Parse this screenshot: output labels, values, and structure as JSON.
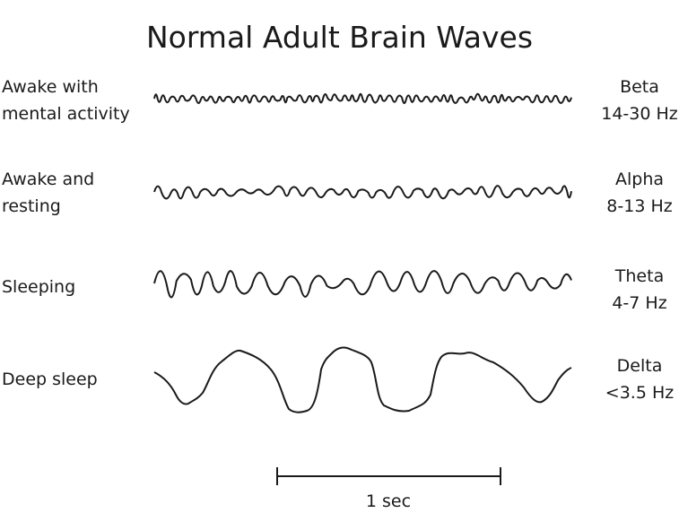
{
  "title": "Normal Adult Brain Waves",
  "rows": [
    {
      "state": [
        "Awake with",
        "mental activity"
      ],
      "wave": "Beta",
      "frequency": "14-30 Hz"
    },
    {
      "state": [
        "Awake and",
        "resting"
      ],
      "wave": "Alpha",
      "frequency": "8-13 Hz"
    },
    {
      "state": [
        "Sleeping"
      ],
      "wave": "Theta",
      "frequency": "4-7 Hz"
    },
    {
      "state": [
        "Deep sleep"
      ],
      "wave": "Delta",
      "frequency": "<3.5 Hz"
    }
  ],
  "scale_bar": {
    "label": "1 sec"
  }
}
